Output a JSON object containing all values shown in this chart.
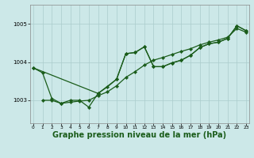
{
  "bg_color": "#cce8e8",
  "grid_color": "#aacccc",
  "line_color": "#1a5c1a",
  "xlabel": "Graphe pression niveau de la mer (hPa)",
  "xlabel_fontsize": 7,
  "yticks": [
    1003,
    1004,
    1005
  ],
  "ylim": [
    1002.4,
    1005.5
  ],
  "xlim": [
    -0.3,
    23.3
  ],
  "xticks": [
    0,
    1,
    2,
    3,
    4,
    5,
    6,
    7,
    8,
    9,
    10,
    11,
    12,
    13,
    14,
    15,
    16,
    17,
    18,
    19,
    20,
    21,
    22,
    23
  ],
  "line1_x": [
    0,
    1,
    2,
    3,
    4,
    5,
    6,
    7,
    8,
    9,
    10,
    11,
    12,
    13,
    14,
    15,
    16,
    17,
    18,
    19,
    20,
    21,
    22,
    23
  ],
  "line1_y": [
    1003.85,
    1003.72,
    1003.05,
    1002.92,
    1003.0,
    1003.0,
    1002.82,
    1003.18,
    1003.35,
    1003.55,
    1004.22,
    1004.25,
    1004.4,
    1003.88,
    1003.88,
    1003.98,
    1004.05,
    1004.18,
    1004.38,
    1004.48,
    1004.52,
    1004.62,
    1004.95,
    1004.82
  ],
  "line2_x": [
    1,
    2,
    3,
    4,
    5,
    6,
    7,
    8,
    9,
    10,
    11,
    12,
    13,
    14,
    15,
    16,
    17,
    18,
    19,
    20,
    21,
    22,
    23
  ],
  "line2_y": [
    1003.0,
    1003.0,
    1002.92,
    1002.95,
    1002.98,
    1003.0,
    1003.12,
    1003.22,
    1003.38,
    1003.6,
    1003.75,
    1003.92,
    1004.05,
    1004.12,
    1004.2,
    1004.28,
    1004.35,
    1004.45,
    1004.52,
    1004.58,
    1004.65,
    1004.88,
    1004.78
  ],
  "line3_x": [
    0,
    7,
    9,
    10,
    11,
    12,
    13,
    14,
    15,
    16,
    17,
    18,
    19,
    20,
    21,
    22,
    23
  ],
  "line3_y": [
    1003.85,
    1003.18,
    1003.55,
    1004.22,
    1004.25,
    1004.4,
    1003.88,
    1003.88,
    1003.98,
    1004.05,
    1004.18,
    1004.38,
    1004.48,
    1004.52,
    1004.62,
    1004.95,
    1004.82
  ]
}
